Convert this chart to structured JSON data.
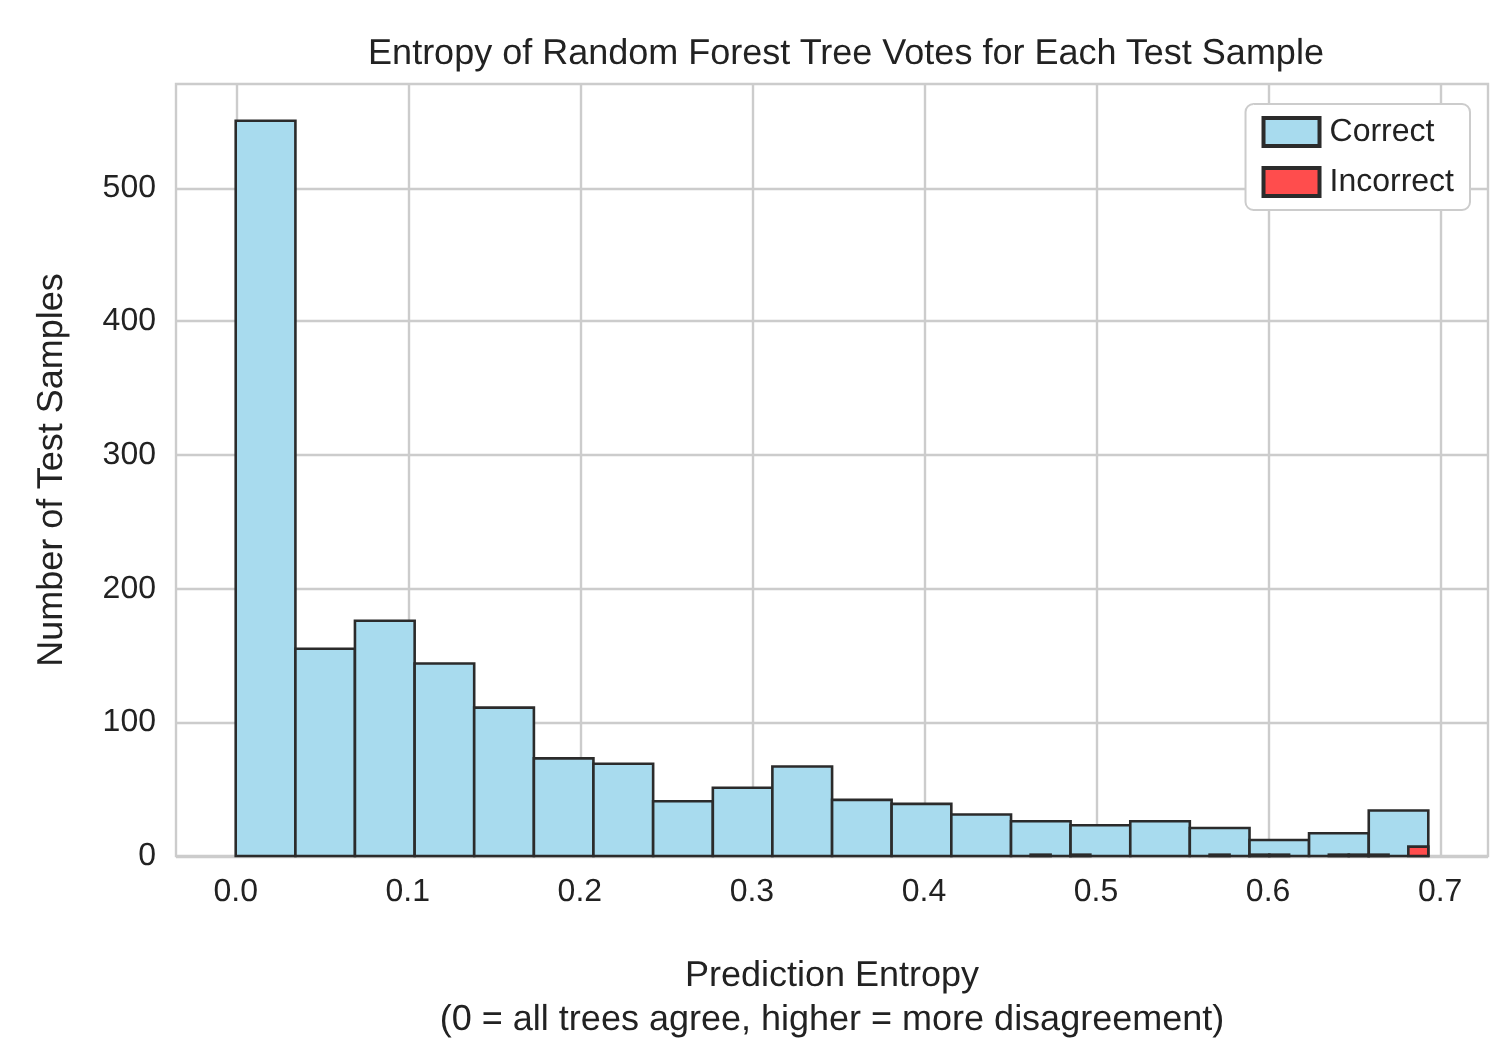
{
  "chart_data": {
    "type": "histogram",
    "title": "Entropy of Random Forest Tree Votes for Each Test Sample",
    "xlabel": "Prediction Entropy\n(0 = all trees agree, higher = more disagreement)",
    "ylabel": "Number of Test Samples",
    "bins": [
      0,
      0.0347,
      0.0693,
      0.104,
      0.1386,
      0.1733,
      0.2079,
      0.2426,
      0.2773,
      0.3119,
      0.3466,
      0.3812,
      0.4159,
      0.4506,
      0.4852,
      0.5199,
      0.5545,
      0.5892,
      0.6238,
      0.6585,
      0.6931
    ],
    "series": [
      {
        "name": "Correct",
        "color": "#a8dbee",
        "values": [
          550,
          155,
          176,
          144,
          111,
          73,
          69,
          41,
          51,
          67,
          42,
          39,
          31,
          26,
          23,
          26,
          21,
          12,
          17,
          34
        ]
      },
      {
        "name": "Incorrect",
        "color": "#ff4d4d",
        "bins": [
          0.462,
          0.4736,
          0.4851,
          0.4967,
          0.5082,
          0.5198,
          0.5313,
          0.5429,
          0.5544,
          0.566,
          0.5776,
          0.5891,
          0.6007,
          0.6122,
          0.6238,
          0.6353,
          0.6469,
          0.6584,
          0.67,
          0.6815,
          0.6931
        ],
        "values": [
          1,
          0,
          1,
          0,
          0,
          0,
          0,
          0,
          0,
          1,
          0,
          1,
          1,
          0,
          0,
          1,
          1,
          1,
          0,
          7
        ]
      }
    ],
    "xlim": [
      -0.0347,
      0.7278
    ],
    "xticks": [
      {
        "value": 0,
        "label": "0.0"
      },
      {
        "value": 0.1,
        "label": "0.1"
      },
      {
        "value": 0.2,
        "label": "0.2"
      },
      {
        "value": 0.3,
        "label": "0.3"
      },
      {
        "value": 0.4,
        "label": "0.4"
      },
      {
        "value": 0.5,
        "label": "0.5"
      },
      {
        "value": 0.6,
        "label": "0.6"
      },
      {
        "value": 0.7,
        "label": "0.7"
      }
    ],
    "ylim": [
      0,
      577.5
    ],
    "yticks": [
      0,
      100,
      200,
      300,
      400,
      500
    ],
    "grid": true,
    "legend": "top right"
  }
}
